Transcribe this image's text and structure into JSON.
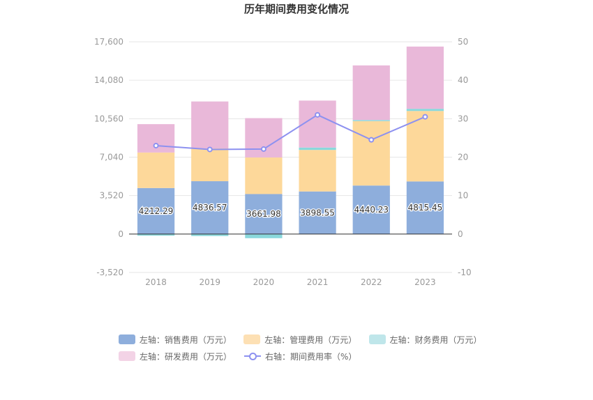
{
  "chart_data": {
    "type": "bar",
    "title": "历年期间费用变化情况",
    "categories": [
      "2018",
      "2019",
      "2020",
      "2021",
      "2022",
      "2023"
    ],
    "left_axis": {
      "ylim": [
        -3520,
        17600
      ],
      "ticks": [
        "17,600",
        "14,080",
        "10,560",
        "7,040",
        "3,520",
        "0",
        "-3,520"
      ],
      "tick_values": [
        17600,
        14080,
        10560,
        7040,
        3520,
        0,
        -3520
      ]
    },
    "right_axis": {
      "ylim": [
        -10,
        50
      ],
      "ticks": [
        "50",
        "40",
        "30",
        "20",
        "10",
        "0",
        "-10"
      ],
      "tick_values": [
        50,
        40,
        30,
        20,
        10,
        0,
        -10
      ]
    },
    "grid": true,
    "legend_position": "bottom",
    "series": [
      {
        "name": "左轴：销售费用（万元）",
        "axis": "left",
        "stack": true,
        "color": "#8eaedc",
        "values": [
          4212.29,
          4836.57,
          3661.98,
          3898.55,
          4440.23,
          4815.45
        ],
        "labels": [
          "4212.29",
          "4836.57",
          "3661.98",
          "3898.55",
          "4440.23",
          "4815.45"
        ]
      },
      {
        "name": "左轴：管理费用（万元）",
        "axis": "left",
        "stack": true,
        "color": "#fdd89a",
        "values": [
          3250,
          3000,
          3350,
          3800,
          5900,
          6450
        ]
      },
      {
        "name": "左轴：财务费用（万元）",
        "axis": "left",
        "stack": true,
        "color": "#8ad8dc",
        "values": [
          -150,
          -180,
          -380,
          220,
          100,
          200
        ]
      },
      {
        "name": "左轴：研发费用（万元）",
        "axis": "left",
        "stack": true,
        "color": "#e9b8d9",
        "values": [
          2600,
          4300,
          3600,
          4300,
          5000,
          5700
        ]
      },
      {
        "name": "右轴：期间费用率（%）",
        "type": "line",
        "axis": "right",
        "color": "#8d91f0",
        "values": [
          23.0,
          22.0,
          22.1,
          31.0,
          24.5,
          30.5
        ]
      }
    ]
  }
}
